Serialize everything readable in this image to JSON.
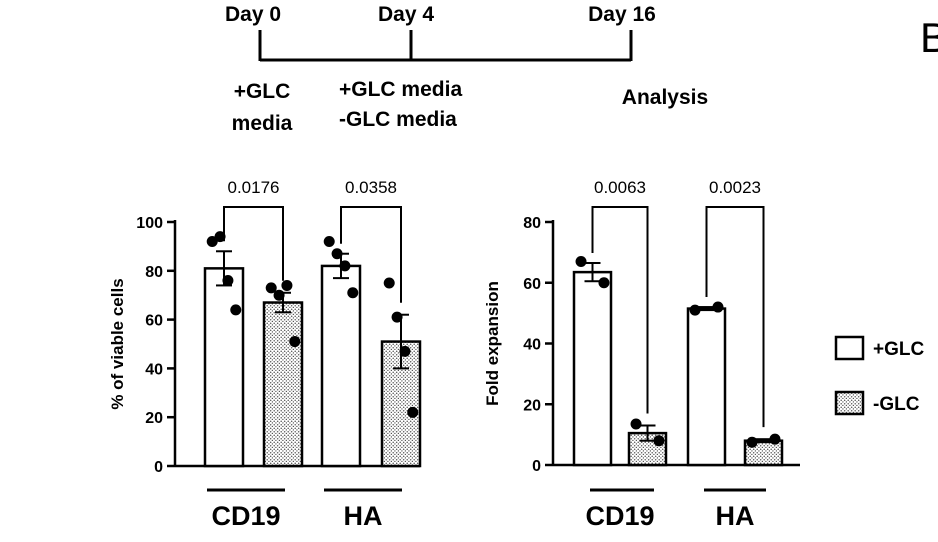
{
  "timeline": {
    "days": [
      "Day 0",
      "Day 4",
      "Day 16"
    ],
    "notes": [
      {
        "lines": [
          "+GLC",
          "media"
        ]
      },
      {
        "lines": [
          "+GLC media",
          "-GLC media"
        ]
      },
      {
        "lines": [
          "Analysis"
        ]
      }
    ]
  },
  "panel_letter": "B",
  "legend": {
    "entries": [
      {
        "label": "+GLC",
        "fill": "open"
      },
      {
        "label": "-GLC",
        "fill": "dotted"
      }
    ]
  },
  "colors": {
    "ink": "#000000",
    "open_fill": "#ffffff",
    "dot_fill": "#d8d8d8"
  },
  "chart_data": [
    {
      "type": "bar",
      "ylabel": "% of viable cells",
      "ylim": [
        0,
        100
      ],
      "yticks": [
        0,
        20,
        40,
        60,
        80,
        100
      ],
      "groups": [
        "CD19",
        "HA"
      ],
      "series": [
        {
          "name": "+GLC",
          "fill": "open"
        },
        {
          "name": "-GLC",
          "fill": "dotted"
        }
      ],
      "bars": [
        {
          "group": "CD19",
          "series": "+GLC",
          "mean": 81,
          "sem": 7,
          "points": [
            92,
            94,
            76,
            64
          ]
        },
        {
          "group": "CD19",
          "series": "-GLC",
          "mean": 67,
          "sem": 4,
          "points": [
            73,
            70,
            74,
            51
          ]
        },
        {
          "group": "HA",
          "series": "+GLC",
          "mean": 82,
          "sem": 5,
          "points": [
            92,
            87,
            82,
            71
          ]
        },
        {
          "group": "HA",
          "series": "-GLC",
          "mean": 51,
          "sem": 11,
          "points": [
            75,
            61,
            47,
            22
          ]
        }
      ],
      "annotations": [
        {
          "group": "CD19",
          "text": "0.0176"
        },
        {
          "group": "HA",
          "text": "0.0358"
        }
      ]
    },
    {
      "type": "bar",
      "ylabel": "Fold expansion",
      "ylim": [
        0,
        80
      ],
      "yticks": [
        0,
        20,
        40,
        60,
        80
      ],
      "groups": [
        "CD19",
        "HA"
      ],
      "series": [
        {
          "name": "+GLC",
          "fill": "open"
        },
        {
          "name": "-GLC",
          "fill": "dotted"
        }
      ],
      "bars": [
        {
          "group": "CD19",
          "series": "+GLC",
          "mean": 63.5,
          "sem": 3,
          "points": [
            67,
            60
          ]
        },
        {
          "group": "CD19",
          "series": "-GLC",
          "mean": 10.5,
          "sem": 2.5,
          "points": [
            13.5,
            8
          ]
        },
        {
          "group": "HA",
          "series": "+GLC",
          "mean": 51.5,
          "sem": 0.5,
          "points": [
            51,
            52
          ]
        },
        {
          "group": "HA",
          "series": "-GLC",
          "mean": 8,
          "sem": 0.5,
          "points": [
            7.5,
            8.5
          ]
        }
      ],
      "annotations": [
        {
          "group": "CD19",
          "text": "0.0063"
        },
        {
          "group": "HA",
          "text": "0.0023"
        }
      ]
    }
  ]
}
